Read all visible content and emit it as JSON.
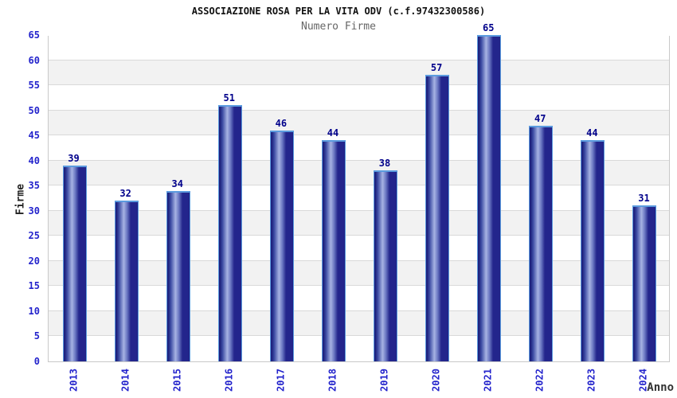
{
  "chart_data": {
    "type": "bar",
    "title": "ASSOCIAZIONE ROSA PER LA VITA ODV (c.f.97432300586)",
    "subtitle": "Numero Firme",
    "xlabel": "Anno",
    "ylabel": "Firme",
    "categories": [
      "2013",
      "2014",
      "2015",
      "2016",
      "2017",
      "2018",
      "2019",
      "2020",
      "2021",
      "2022",
      "2023",
      "2024"
    ],
    "values": [
      39,
      32,
      34,
      51,
      46,
      44,
      38,
      57,
      65,
      47,
      44,
      31
    ],
    "ylim": [
      0,
      65
    ],
    "ytick_step": 5,
    "grid": "alternating-horizontal-bands",
    "legend": "none",
    "colors": {
      "bar_edge_highlight": "#5b9bdf",
      "bar_dark": "#1a1d78",
      "bar_body": "#23258c",
      "bar_mid": "#3a49a2",
      "bar_highlight": "#a7b3e3",
      "value_label": "#00008b",
      "tick_label": "#2323cc",
      "band_gray": "#f2f2f2",
      "band_white": "#ffffff",
      "grid_line": "#d9d9d9",
      "plot_border": "#c9c9c9",
      "title_color": "#111111",
      "subtitle_color": "#666666",
      "axis_title_color": "#333333"
    }
  }
}
